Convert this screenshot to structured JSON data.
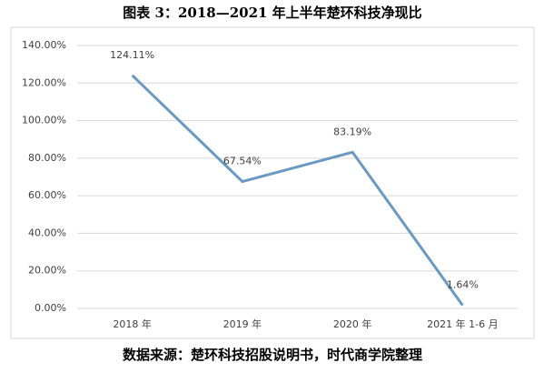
{
  "chart_data": {
    "type": "line",
    "title": "图表 3：2018—2021 年上半年楚环科技净现比",
    "source": "数据来源：楚环科技招股说明书，时代商学院整理",
    "categories": [
      "2018 年",
      "2019 年",
      "2020 年",
      "2021 年 1-6 月"
    ],
    "values": [
      124.11,
      67.54,
      83.19,
      1.64
    ],
    "value_labels": [
      "124.11%",
      "67.54%",
      "83.19%",
      "1.64%"
    ],
    "color": "#6a9ac4",
    "ylim": [
      0,
      140
    ],
    "yticks": [
      {
        "value": 0,
        "label": "0.00%"
      },
      {
        "value": 20,
        "label": "20.00%"
      },
      {
        "value": 40,
        "label": "40.00%"
      },
      {
        "value": 60,
        "label": "60.00%"
      },
      {
        "value": 80,
        "label": "80.00%"
      },
      {
        "value": 100,
        "label": "100.00%"
      },
      {
        "value": 120,
        "label": "120.00%"
      },
      {
        "value": 140,
        "label": "140.00%"
      }
    ],
    "grid": true
  }
}
